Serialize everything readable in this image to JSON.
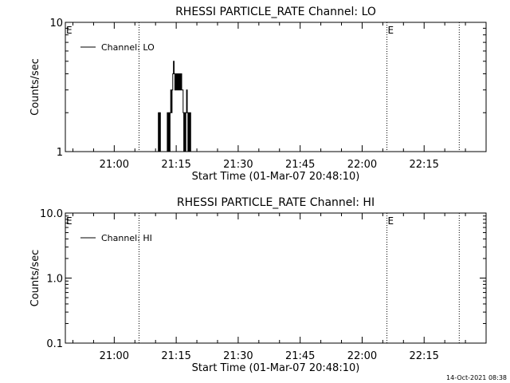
{
  "footer": {
    "timestamp": "14-Oct-2021 08:38"
  },
  "colors": {
    "background": "#ffffff",
    "foreground": "#000000"
  },
  "chart_data": [
    {
      "type": "line",
      "title": "RHESSI PARTICLE_RATE Channel: LO",
      "xlabel": "Start Time (01-Mar-07 20:48:10)",
      "ylabel": "Counts/sec",
      "y_scale": "log",
      "ylim": [
        1,
        10
      ],
      "y_ticks": [
        1,
        10
      ],
      "y_tick_labels": [
        "1",
        "10"
      ],
      "xlim": [
        "20:48:10",
        "22:30:00"
      ],
      "x_ticks": [
        "21:00",
        "21:15",
        "21:30",
        "21:45",
        "22:00",
        "22:15"
      ],
      "x_tick_labels": [
        "21:00",
        "21:15",
        "21:30",
        "21:45",
        "22:00",
        "22:15"
      ],
      "legend": {
        "position": "top-left",
        "entries": [
          "Channel: LO"
        ]
      },
      "markers": [
        {
          "time": "21:06:00",
          "label": ""
        },
        {
          "time": "22:06:00",
          "label": ""
        },
        {
          "time": "22:23:30",
          "label": ""
        }
      ],
      "edge_labels": [
        {
          "time": "20:48:10",
          "label": "E"
        },
        {
          "time": "22:06:00",
          "label": "E"
        }
      ],
      "series": [
        {
          "name": "Channel: LO",
          "x": [
            "21:10:30",
            "21:10:40",
            "21:10:50",
            "21:11:00",
            "21:11:10",
            "21:11:20",
            "21:12:40",
            "21:12:50",
            "21:13:00",
            "21:13:10",
            "21:13:20",
            "21:13:30",
            "21:13:40",
            "21:13:50",
            "21:14:00",
            "21:14:10",
            "21:14:20",
            "21:14:30",
            "21:14:40",
            "21:14:50",
            "21:15:00",
            "21:15:10",
            "21:15:20",
            "21:15:30",
            "21:15:40",
            "21:15:50",
            "21:16:00",
            "21:16:10",
            "21:16:20",
            "21:16:30",
            "21:16:40",
            "21:16:50",
            "21:17:00",
            "21:17:10",
            "21:17:20",
            "21:17:30",
            "21:17:40",
            "21:17:50",
            "21:18:00",
            "21:18:10",
            "21:18:20",
            "21:18:30",
            "21:18:40",
            "21:18:50"
          ],
          "y": [
            1,
            2,
            1,
            2,
            1,
            1,
            1,
            2,
            1,
            2,
            1,
            2,
            3,
            2,
            3,
            4,
            5,
            4,
            3,
            4,
            3,
            4,
            3,
            4,
            3,
            4,
            3,
            4,
            3,
            3,
            2,
            1,
            2,
            1,
            2,
            3,
            2,
            1,
            2,
            1,
            2,
            1,
            1,
            1
          ]
        }
      ]
    },
    {
      "type": "line",
      "title": "RHESSI PARTICLE_RATE Channel: HI",
      "xlabel": "Start Time (01-Mar-07 20:48:10)",
      "ylabel": "Counts/sec",
      "y_scale": "log",
      "ylim": [
        0.1,
        10
      ],
      "y_ticks": [
        0.1,
        1,
        10
      ],
      "y_tick_labels": [
        "0.1",
        "1.0",
        "10.0"
      ],
      "xlim": [
        "20:48:10",
        "22:30:00"
      ],
      "x_ticks": [
        "21:00",
        "21:15",
        "21:30",
        "21:45",
        "22:00",
        "22:15"
      ],
      "x_tick_labels": [
        "21:00",
        "21:15",
        "21:30",
        "21:45",
        "22:00",
        "22:15"
      ],
      "legend": {
        "position": "top-left",
        "entries": [
          "Channel: HI"
        ]
      },
      "markers": [
        {
          "time": "21:06:00",
          "label": ""
        },
        {
          "time": "22:06:00",
          "label": ""
        },
        {
          "time": "22:23:30",
          "label": ""
        }
      ],
      "edge_labels": [
        {
          "time": "20:48:10",
          "label": "E"
        },
        {
          "time": "22:06:00",
          "label": "E"
        }
      ],
      "series": [
        {
          "name": "Channel: HI",
          "x": [],
          "y": []
        }
      ]
    }
  ]
}
